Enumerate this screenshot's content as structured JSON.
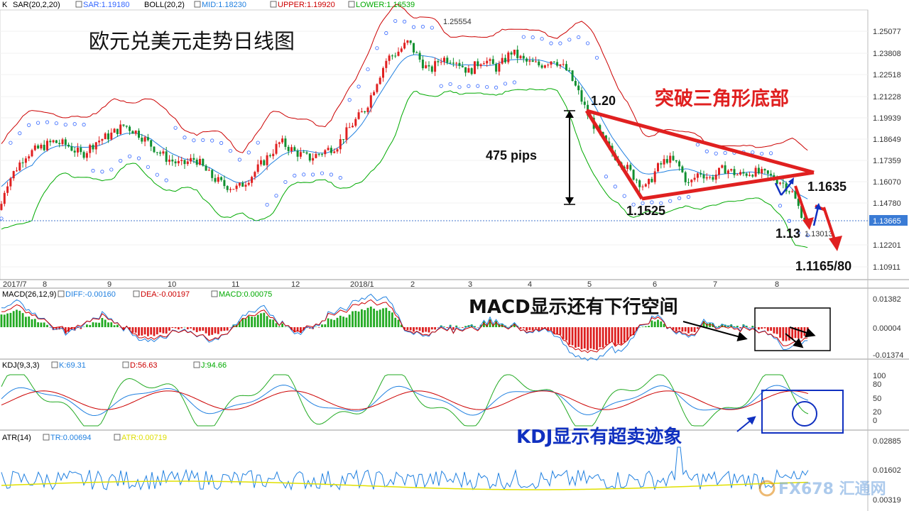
{
  "chart_data": {
    "type": "line",
    "title": "欧元兑美元走势日线图",
    "header": {
      "main": {
        "symbol": "K",
        "sar_label": "SAR(20,2,20)",
        "sar_value": "SAR:1.19180",
        "boll_label": "BOLL(20,2)",
        "mid": "MID:1.18230",
        "upper": "UPPER:1.19920",
        "lower": "LOWER:1.16539"
      },
      "macd": {
        "label": "MACD(26,12,9)",
        "diff": "DIFF:-0.00160",
        "dea": "DEA:-0.00197",
        "macd": "MACD:0.00075"
      },
      "kdj": {
        "label": "KDJ(9,3,3)",
        "k": "K:69.31",
        "d": "D:56.63",
        "j": "J:94.66"
      },
      "atr": {
        "label": "ATR(14)",
        "tr": "TR:0.00694",
        "atr": "ATR:0.00719"
      }
    },
    "price_axis": [
      "1.25077",
      "1.23808",
      "1.22518",
      "1.21228",
      "1.19939",
      "1.18649",
      "1.17359",
      "1.16070",
      "1.14780",
      "1.13665",
      "1.12201",
      "1.10911"
    ],
    "current_price": "1.13665",
    "x_labels": [
      "2017/7",
      "8",
      "9",
      "10",
      "11",
      "12",
      "2018/1",
      "2",
      "3",
      "4",
      "5",
      "6",
      "7",
      "8"
    ],
    "macd_axis": [
      "0.01382",
      "0.00004",
      "-0.01374"
    ],
    "kdj_axis": [
      "100",
      "80",
      "50",
      "20",
      "0"
    ],
    "atr_axis": [
      "0.02885",
      "0.01602",
      "0.00319"
    ],
    "close_path": [
      [
        0,
        1.145
      ],
      [
        8,
        1.16
      ],
      [
        20,
        1.168
      ],
      [
        35,
        1.178
      ],
      [
        55,
        1.182
      ],
      [
        75,
        1.186
      ],
      [
        95,
        1.184
      ],
      [
        115,
        1.178
      ],
      [
        135,
        1.186
      ],
      [
        155,
        1.19
      ],
      [
        175,
        1.196
      ],
      [
        195,
        1.191
      ],
      [
        215,
        1.183
      ],
      [
        235,
        1.176
      ],
      [
        255,
        1.172
      ],
      [
        275,
        1.176
      ],
      [
        295,
        1.166
      ],
      [
        315,
        1.16
      ],
      [
        335,
        1.158
      ],
      [
        355,
        1.166
      ],
      [
        375,
        1.176
      ],
      [
        395,
        1.186
      ],
      [
        415,
        1.18
      ],
      [
        435,
        1.176
      ],
      [
        455,
        1.18
      ],
      [
        475,
        1.184
      ],
      [
        495,
        1.196
      ],
      [
        515,
        1.206
      ],
      [
        530,
        1.222
      ],
      [
        545,
        1.236
      ],
      [
        560,
        1.24
      ],
      [
        575,
        1.246
      ],
      [
        590,
        1.236
      ],
      [
        605,
        1.228
      ],
      [
        620,
        1.236
      ],
      [
        640,
        1.236
      ],
      [
        660,
        1.228
      ],
      [
        680,
        1.236
      ],
      [
        700,
        1.23
      ],
      [
        720,
        1.24
      ],
      [
        740,
        1.234
      ],
      [
        760,
        1.232
      ],
      [
        780,
        1.236
      ],
      [
        800,
        1.228
      ],
      [
        815,
        1.215
      ],
      [
        828,
        1.202
      ],
      [
        845,
        1.19
      ],
      [
        860,
        1.18
      ],
      [
        875,
        1.174
      ],
      [
        895,
        1.164
      ],
      [
        910,
        1.158
      ],
      [
        925,
        1.17
      ],
      [
        940,
        1.176
      ],
      [
        955,
        1.172
      ],
      [
        970,
        1.16
      ],
      [
        985,
        1.168
      ],
      [
        1000,
        1.164
      ],
      [
        1020,
        1.17
      ],
      [
        1040,
        1.166
      ],
      [
        1060,
        1.168
      ],
      [
        1080,
        1.166
      ],
      [
        1100,
        1.162
      ],
      [
        1115,
        1.156
      ],
      [
        1125,
        1.146
      ],
      [
        1135,
        1.138
      ],
      [
        1140,
        1.1366
      ]
    ],
    "annotations": {
      "high": "1.25554",
      "breakout_title": "突破三角形底部",
      "level_120": "1.20",
      "range": "475 pips",
      "low": "1.1525",
      "break_level": "1.1635",
      "level_113": "1.13",
      "small_low": "1.13013",
      "target": "1.1165/80",
      "macd_note": "MACD显示还有下行空间",
      "kdj_note": "KDJ显示有超卖迹象"
    },
    "watermark": "FX678 汇通网",
    "colors": {
      "red": "#e02020",
      "blue": "#1030c0",
      "upper": "#cc0000",
      "lower": "#00aa00",
      "mid": "#2080e0",
      "sar": "#3366ff"
    }
  }
}
